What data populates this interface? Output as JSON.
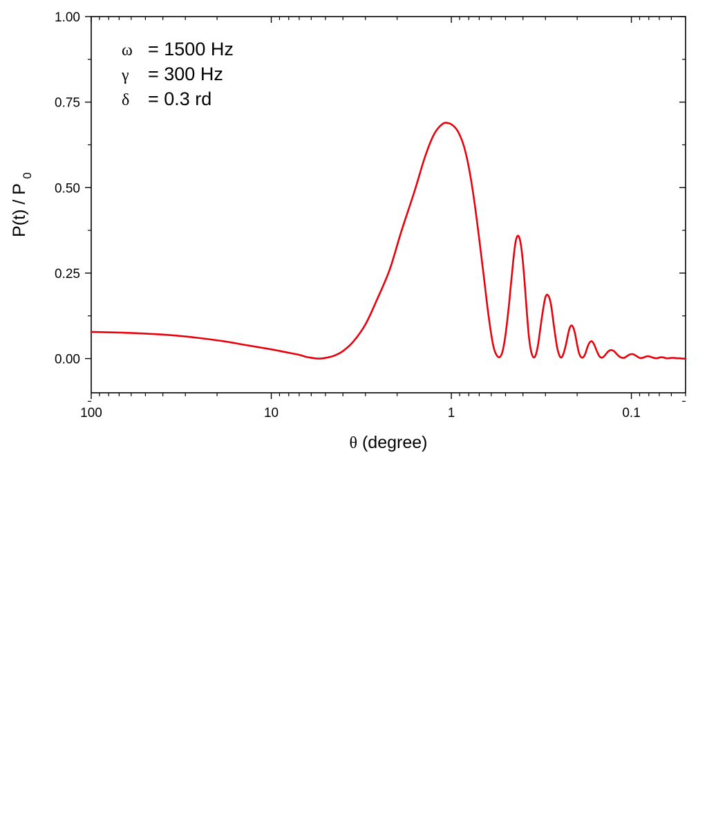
{
  "chart_data": {
    "type": "line",
    "xscale": "log",
    "xreversed": true,
    "xlim": [
      100,
      0.05
    ],
    "ylim": [
      -0.1,
      1.0
    ],
    "xlabel": {
      "symbol": "θ",
      "text": "(degree)"
    },
    "ylabel": "P(t) / P",
    "ylabel_sub": "0",
    "xticks": [
      {
        "value": 100,
        "label": "100"
      },
      {
        "value": 10,
        "label": "10"
      },
      {
        "value": 1,
        "label": "1"
      },
      {
        "value": 0.1,
        "label": "0.1"
      }
    ],
    "yticks": [
      {
        "value": 0.0,
        "label": "0.00"
      },
      {
        "value": 0.25,
        "label": "0.25"
      },
      {
        "value": 0.5,
        "label": "0.50"
      },
      {
        "value": 0.75,
        "label": "0.75"
      },
      {
        "value": 1.0,
        "label": "1.00"
      }
    ],
    "grid": false,
    "line_color": "#e8000b",
    "annotations": [
      {
        "symbol": "ω",
        "text": "= 1500 Hz"
      },
      {
        "symbol": "γ",
        "text": "=  300 Hz"
      },
      {
        "symbol": "δ",
        "text": "=    0.3  rd"
      }
    ],
    "series": [
      {
        "x": [
          100,
          70,
          50,
          35,
          25,
          18,
          14,
          10,
          8,
          7,
          6.5,
          6.1,
          5.5,
          5.0,
          4.5,
          4.0,
          3.5,
          3.0,
          2.6,
          2.2,
          1.9,
          1.6,
          1.4,
          1.25,
          1.12,
          1.03,
          0.95,
          0.9,
          0.85,
          0.8,
          0.75,
          0.7,
          0.66,
          0.63,
          0.6,
          0.58,
          0.56,
          0.54,
          0.52,
          0.5,
          0.48,
          0.47,
          0.46,
          0.45,
          0.44,
          0.43,
          0.42,
          0.41,
          0.4,
          0.39,
          0.38,
          0.37,
          0.36,
          0.35,
          0.34,
          0.33,
          0.32,
          0.31,
          0.3,
          0.29,
          0.28,
          0.27,
          0.26,
          0.255,
          0.25,
          0.245,
          0.24,
          0.235,
          0.23,
          0.225,
          0.22,
          0.215,
          0.21,
          0.205,
          0.2,
          0.195,
          0.19,
          0.185,
          0.18,
          0.175,
          0.17,
          0.165,
          0.16,
          0.155,
          0.15,
          0.145,
          0.14,
          0.135,
          0.13,
          0.125,
          0.12,
          0.115,
          0.11,
          0.106,
          0.102,
          0.098,
          0.094,
          0.09,
          0.087,
          0.084,
          0.081,
          0.078,
          0.075,
          0.072,
          0.07,
          0.068,
          0.066,
          0.064,
          0.062,
          0.06,
          0.058,
          0.056,
          0.054,
          0.052,
          0.05
        ],
        "y": [
          0.078,
          0.076,
          0.073,
          0.068,
          0.06,
          0.05,
          0.04,
          0.027,
          0.017,
          0.011,
          0.006,
          0.003,
          0.0,
          0.002,
          0.008,
          0.022,
          0.05,
          0.1,
          0.17,
          0.26,
          0.37,
          0.49,
          0.59,
          0.655,
          0.686,
          0.688,
          0.675,
          0.655,
          0.62,
          0.56,
          0.47,
          0.35,
          0.24,
          0.15,
          0.07,
          0.03,
          0.01,
          0.004,
          0.02,
          0.07,
          0.15,
          0.2,
          0.25,
          0.3,
          0.34,
          0.358,
          0.355,
          0.33,
          0.28,
          0.21,
          0.13,
          0.06,
          0.02,
          0.004,
          0.01,
          0.04,
          0.09,
          0.14,
          0.18,
          0.185,
          0.16,
          0.1,
          0.04,
          0.02,
          0.007,
          0.003,
          0.01,
          0.025,
          0.045,
          0.07,
          0.09,
          0.097,
          0.09,
          0.07,
          0.04,
          0.015,
          0.004,
          0.004,
          0.015,
          0.035,
          0.048,
          0.05,
          0.038,
          0.02,
          0.006,
          0.003,
          0.01,
          0.02,
          0.025,
          0.022,
          0.012,
          0.004,
          0.002,
          0.007,
          0.012,
          0.013,
          0.008,
          0.002,
          0.002,
          0.005,
          0.007,
          0.005,
          0.002,
          0.001,
          0.003,
          0.004,
          0.003,
          0.001,
          0.001,
          0.002,
          0.002,
          0.001,
          0.001,
          0.0,
          0.0
        ]
      }
    ]
  }
}
